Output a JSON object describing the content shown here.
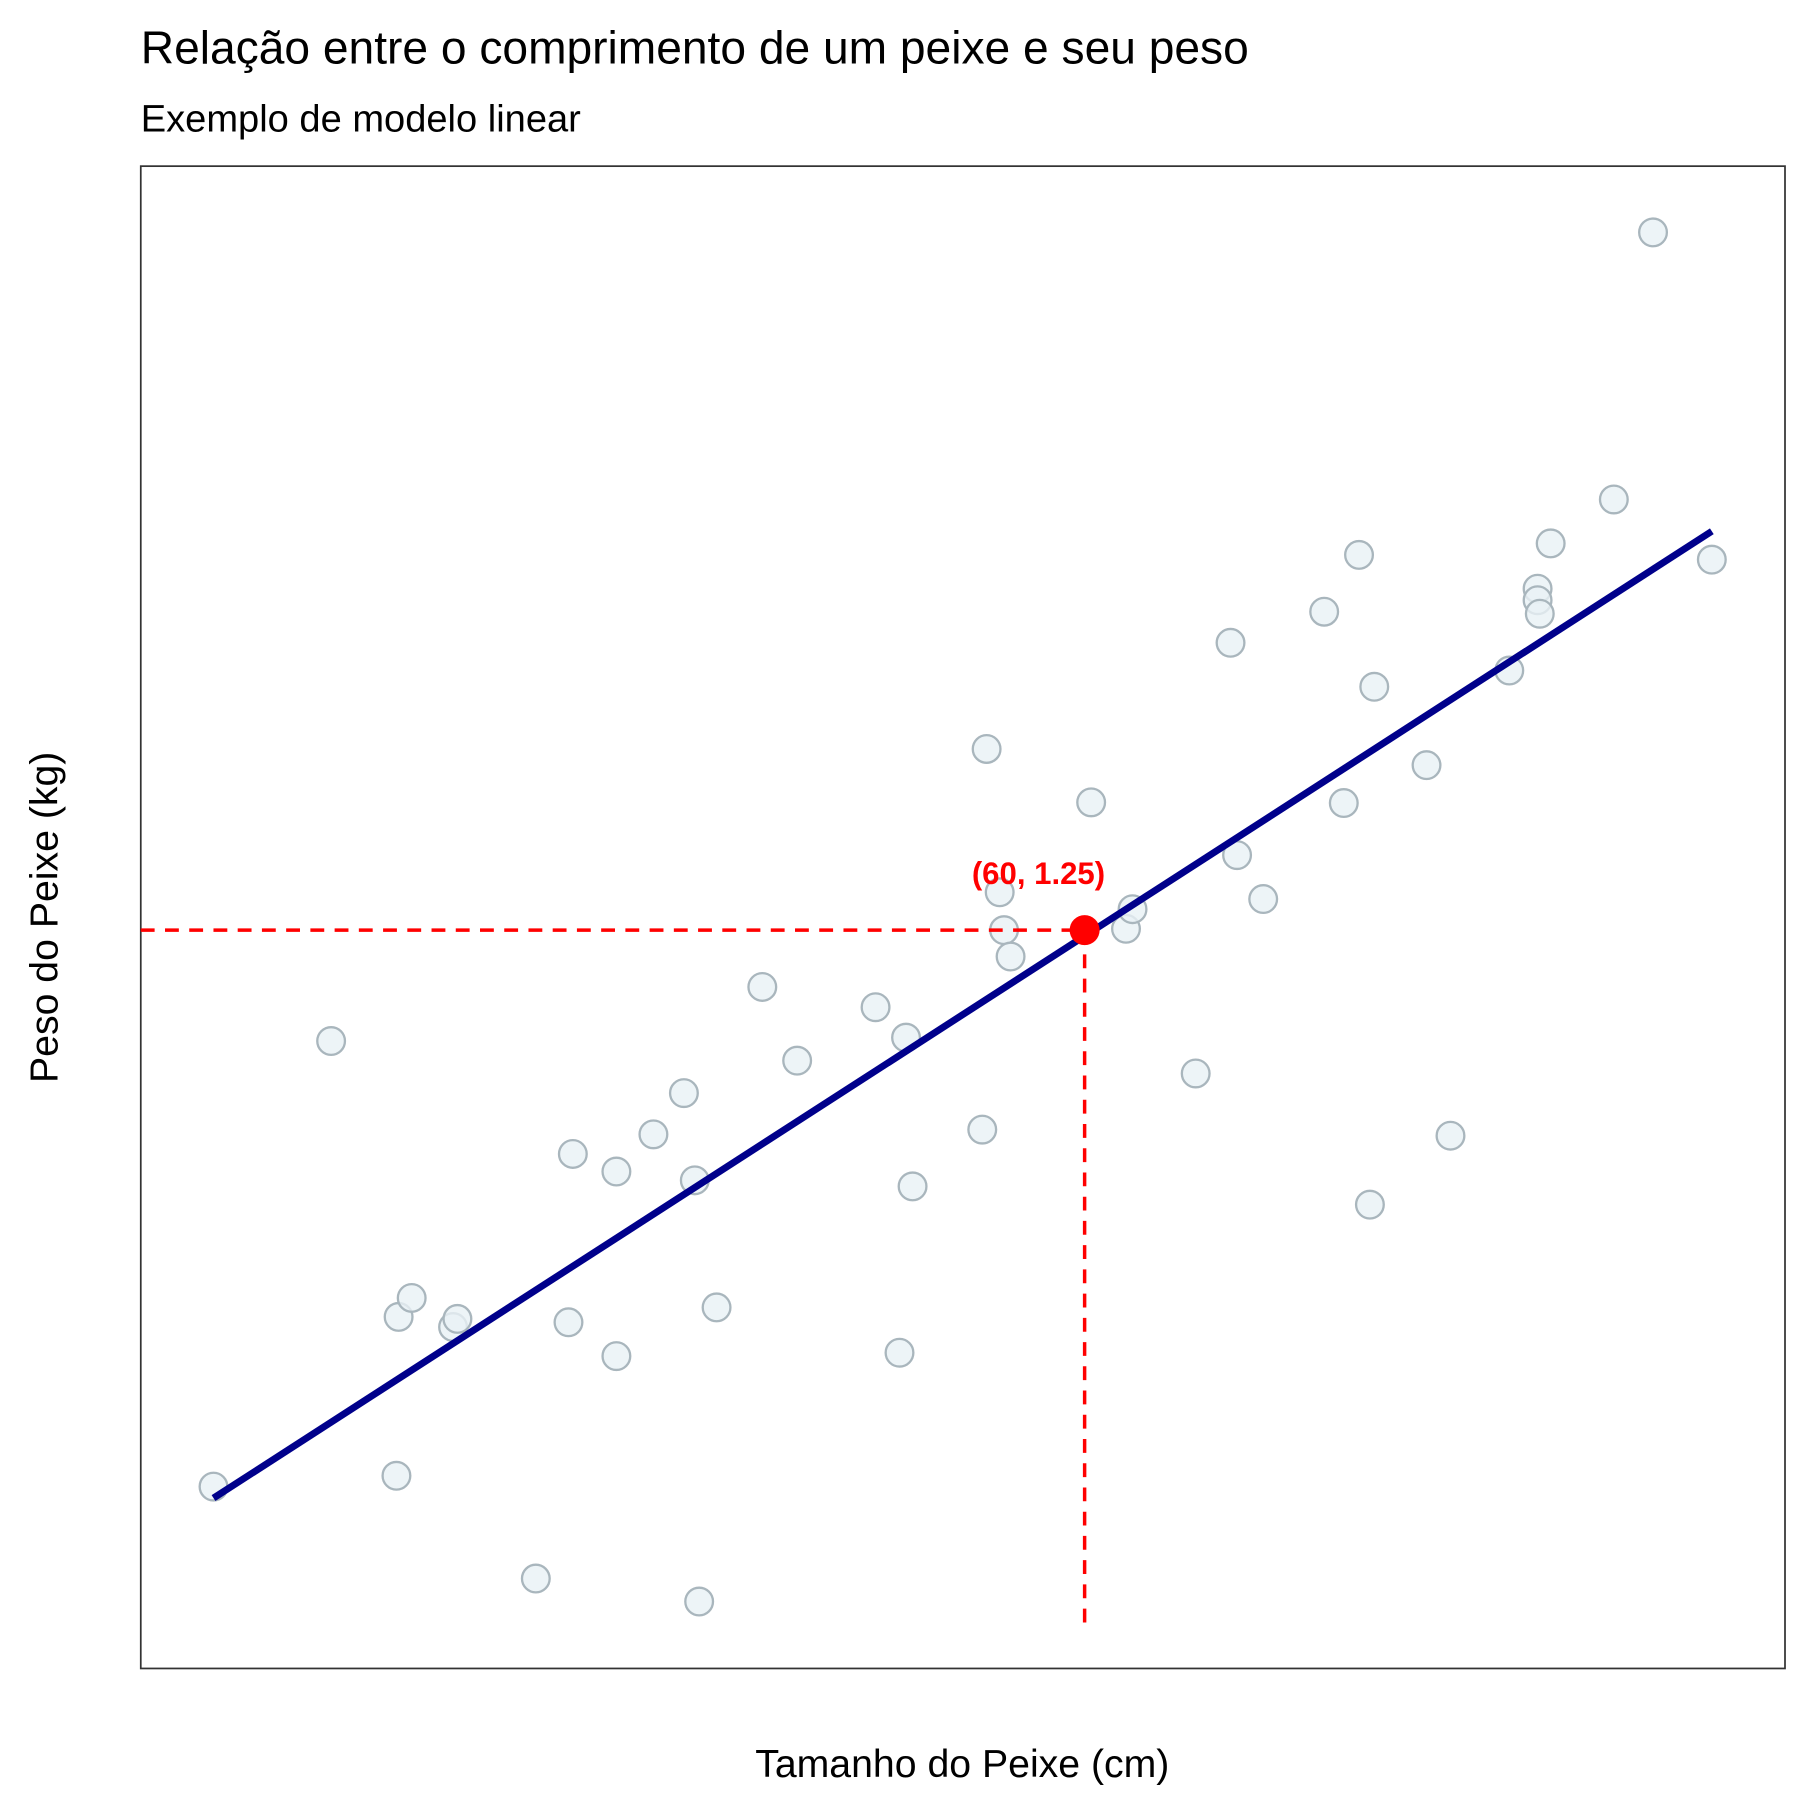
{
  "chart_data": {
    "type": "scatter",
    "title": "Relação entre o comprimento de um peixe e seu peso",
    "subtitle": "Exemplo de modelo linear",
    "x_label": "Tamanho do Peixe (cm)",
    "y_label": "Peso do Peixe (kg)",
    "xlim": [
      16.66,
      92.16
    ],
    "ylim": [
      0.158,
      2.38
    ],
    "color": "#e8f1f5",
    "edge_color": "#a9b6bd",
    "x": [
      20.0,
      25.4,
      28.4,
      28.5,
      29.1,
      31.0,
      31.2,
      34.8,
      36.3,
      36.5,
      38.5,
      38.5,
      40.2,
      41.6,
      42.1,
      42.3,
      43.1,
      45.2,
      46.8,
      50.4,
      51.5,
      51.8,
      52.1,
      55.3,
      55.5,
      56.1,
      56.3,
      56.6,
      60.3,
      61.9,
      62.2,
      65.1,
      66.7,
      67.0,
      68.2,
      71.0,
      71.9,
      72.6,
      73.1,
      73.3,
      75.7,
      76.8,
      79.5,
      80.8,
      80.8,
      80.9,
      81.4,
      84.3,
      86.1,
      88.8
    ],
    "values": [
      0.427,
      1.086,
      0.443,
      0.678,
      0.706,
      0.663,
      0.675,
      0.291,
      0.67,
      0.919,
      0.893,
      0.62,
      0.948,
      1.009,
      0.88,
      0.257,
      0.692,
      1.166,
      1.057,
      1.136,
      0.625,
      1.091,
      0.871,
      0.955,
      1.518,
      1.306,
      1.25,
      1.211,
      1.439,
      1.252,
      1.281,
      1.038,
      1.675,
      1.361,
      1.296,
      1.721,
      1.438,
      1.805,
      0.844,
      1.61,
      1.494,
      0.946,
      1.634,
      1.755,
      1.738,
      1.718,
      1.822,
      1.887,
      2.282,
      1.798
    ],
    "fit": {
      "x": [
        20.0,
        88.8
      ],
      "y": [
        0.41,
        1.84
      ],
      "color": "#00008b"
    },
    "highlight": {
      "x": 60,
      "y": 1.25,
      "label": "(60, 1.25)",
      "color": "#ff0000"
    }
  }
}
